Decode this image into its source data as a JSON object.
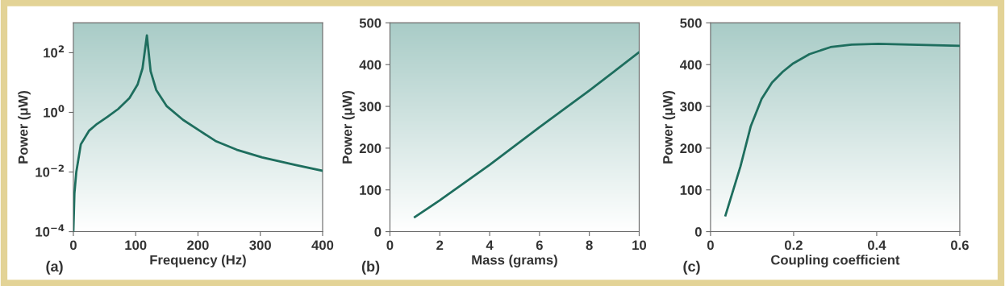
{
  "chart_data": [
    {
      "type": "line",
      "xlabel": "Frequency (Hz)",
      "ylabel": "Power (μW)",
      "log": "y",
      "annotations": [
        "(a)"
      ],
      "xlim": [
        0,
        400
      ],
      "xticks": [
        0,
        100,
        200,
        300,
        400
      ],
      "ylim": [
        0.0001,
        1000
      ],
      "yticks": [
        {
          "value": 0.0001,
          "label": "10$^{−4}$"
        },
        {
          "value": 0.01,
          "label": "10$^{−2}$"
        },
        {
          "value": 1,
          "label": "10$^{0}$"
        },
        {
          "value": 100,
          "label": "10$^{2}$"
        }
      ],
      "grid": false,
      "series": [
        {
          "color": "#1e6e5e",
          "x": [
            0,
            1.7,
            4.7,
            12,
            25,
            38,
            55,
            72,
            90,
            103,
            111,
            118,
            124,
            133,
            150,
            176,
            203,
            228,
            262,
            303,
            357,
            400
          ],
          "values": [
            0.0001,
            0.0019,
            0.01,
            0.085,
            0.24,
            0.41,
            0.71,
            1.3,
            3.0,
            8.5,
            30,
            380,
            24,
            5.6,
            1.6,
            0.56,
            0.24,
            0.11,
            0.056,
            0.031,
            0.017,
            0.011
          ]
        }
      ]
    },
    {
      "type": "line",
      "xlabel": "Mass (grams)",
      "ylabel": "Power (μW)",
      "annotations": [
        "(b)"
      ],
      "xlim": [
        0,
        10
      ],
      "xticks": [
        0,
        2,
        4,
        6,
        8,
        10
      ],
      "ylim": [
        0,
        500
      ],
      "yticks": [
        0,
        100,
        200,
        300,
        400,
        500
      ],
      "grid": false,
      "series": [
        {
          "color": "#1e6e5e",
          "x": [
            1,
            2,
            4,
            6,
            8,
            10
          ],
          "values": [
            35,
            75,
            160,
            250,
            338,
            430
          ]
        }
      ]
    },
    {
      "type": "line",
      "xlabel": "Coupling coefficient",
      "ylabel": "Power (μW)",
      "annotations": [
        "(c)"
      ],
      "xlim": [
        0,
        0.6
      ],
      "xticks": [
        0,
        0.2,
        0.4,
        0.6
      ],
      "ylim": [
        0,
        500
      ],
      "yticks": [
        0,
        100,
        200,
        300,
        400,
        500
      ],
      "grid": false,
      "series": [
        {
          "color": "#1e6e5e",
          "x": [
            0.036,
            0.072,
            0.097,
            0.123,
            0.148,
            0.174,
            0.199,
            0.238,
            0.289,
            0.34,
            0.404,
            0.48,
            0.6
          ],
          "values": [
            39,
            156,
            253,
            318,
            357,
            383,
            403,
            425,
            442,
            448,
            450,
            448,
            445
          ]
        }
      ]
    }
  ]
}
